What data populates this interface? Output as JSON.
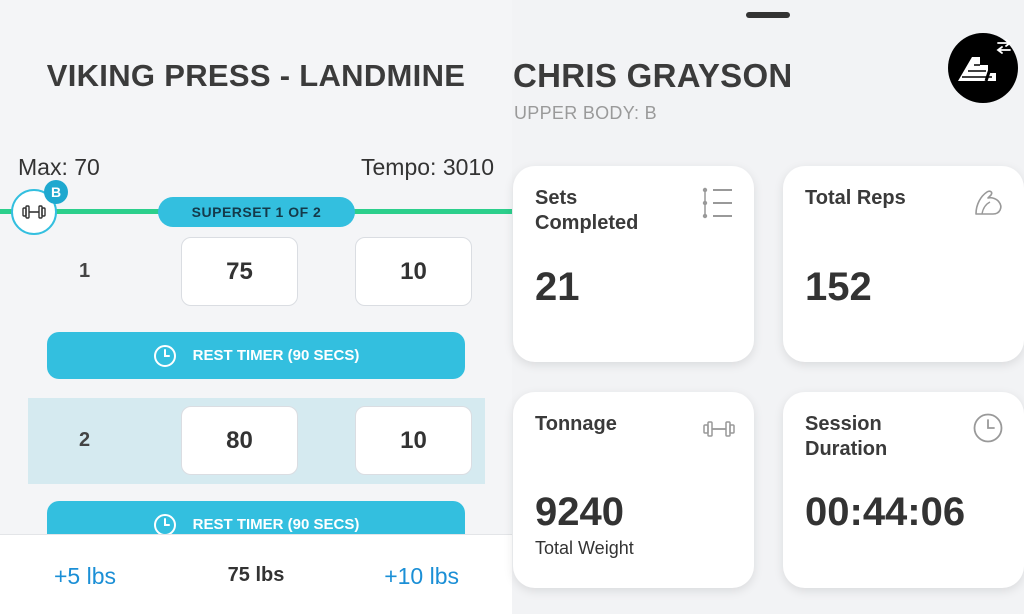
{
  "exercise": {
    "title": "VIKING PRESS - LANDMINE",
    "max_label": "Max: 70",
    "tempo_label": "Tempo: 3010",
    "superset_label": "SUPERSET 1 OF 2",
    "group_badge": "B",
    "sets": [
      {
        "number": "1",
        "weight": "75",
        "reps": "10",
        "active": false
      },
      {
        "number": "2",
        "weight": "80",
        "reps": "10",
        "active": true
      }
    ],
    "rest_timer_label": "REST TIMER (90 SECS)"
  },
  "bottom_bar": {
    "decrement_label": "+5 lbs",
    "current_weight": "75 lbs",
    "increment_label": "+10 lbs"
  },
  "athlete": {
    "name": "CHRIS GRAYSON",
    "program": "UPPER BODY: B"
  },
  "stats": {
    "sets_completed": {
      "label": "Sets Completed",
      "value": "21",
      "icon": "list-icon"
    },
    "total_reps": {
      "label": "Total Reps",
      "value": "152",
      "icon": "flexed-arm-icon"
    },
    "tonnage": {
      "label": "Tonnage",
      "value": "9240",
      "sub": "Total Weight",
      "icon": "dumbbell-icon"
    },
    "session_duration": {
      "label": "Session Duration",
      "value": "00:44:06",
      "icon": "clock-icon"
    }
  },
  "colors": {
    "accent": "#33bfdf",
    "superset_line": "#2ccf8c",
    "link": "#1b8fd6"
  }
}
